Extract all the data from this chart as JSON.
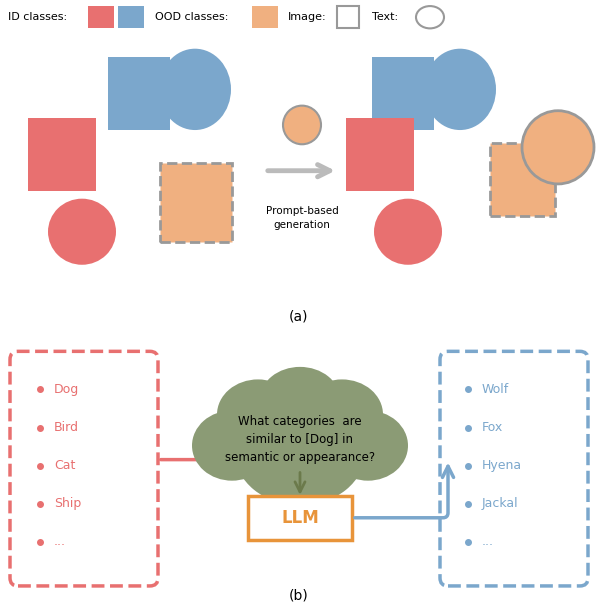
{
  "pink": "#E87070",
  "blue": "#7BA7CC",
  "ood_orange": "#F0B080",
  "gray_border": "#999999",
  "arrow_gray": "#BBBBBB",
  "cloud_color": "#8B9B75",
  "llm_orange": "#E8943A",
  "text_pink": "#E87070",
  "text_blue": "#7BA7CC",
  "bg": "#FFFFFF",
  "legend_items": [
    "ID classes:",
    "OOD classes:",
    "Image:",
    "Text:"
  ],
  "panel_a_label": "(a)",
  "panel_b_label": "(b)",
  "prompt_text": "Prompt-based\ngeneration",
  "cloud_text": "What categories  are\nsimilar to [Dog] in\nsemantic or appearance?",
  "llm_text": "LLM",
  "id_items": [
    "Dog",
    "Bird",
    "Cat",
    "Ship",
    "..."
  ],
  "ood_items": [
    "Wolf",
    "Fox",
    "Hyena",
    "Jackal",
    "..."
  ]
}
